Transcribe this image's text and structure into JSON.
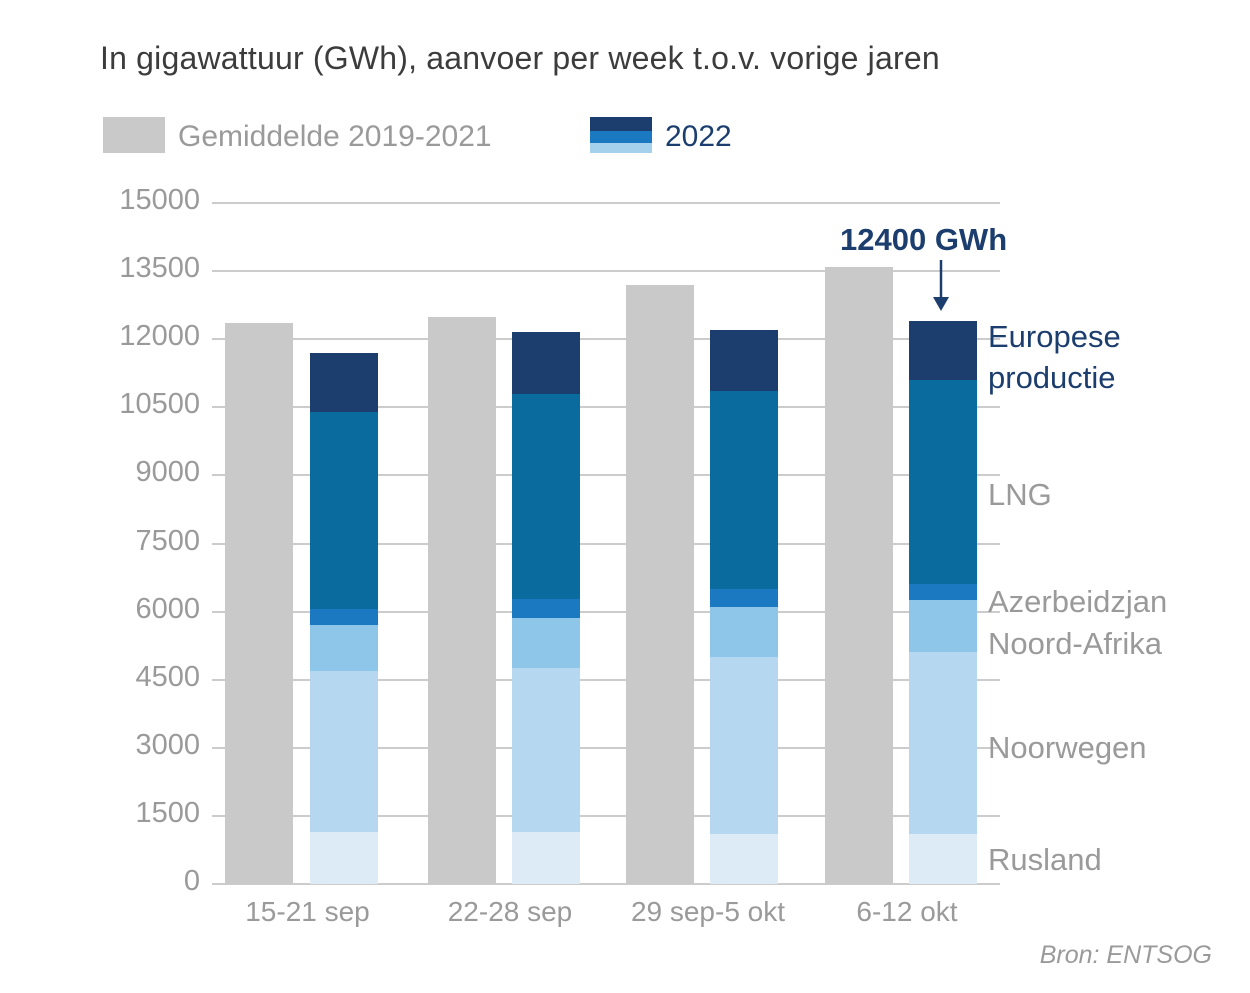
{
  "title": "In gigawattuur (GWh), aanvoer per week t.o.v. vorige jaren",
  "legend": {
    "average_label": "Gemiddelde 2019-2021",
    "year_label": "2022"
  },
  "annotation": {
    "label": "12400 GWh"
  },
  "source": "Bron: ENTSOG",
  "colors": {
    "average_bar": "#c9c9c9",
    "rusland": "#dcebf6",
    "noorwegen": "#b5d8f0",
    "noord_afrika": "#8ec6e9",
    "azerbeidzjan": "#1b79c2",
    "lng": "#0a6b9e",
    "europese_productie": "#1c3e6e",
    "navy_text": "#1c3e6e",
    "gray_text": "#9a9a9a",
    "gridline": "#cccccc"
  },
  "chart_data": {
    "type": "bar",
    "stacked": true,
    "grid": true,
    "legend_position": "top",
    "categories": [
      "15-21 sep",
      "22-28 sep",
      "29 sep-5 okt",
      "6-12 okt"
    ],
    "ylim": [
      0,
      15000
    ],
    "ytick_step": 1500,
    "yticks": [
      0,
      1500,
      3000,
      4500,
      6000,
      7500,
      9000,
      10500,
      12000,
      13500,
      15000
    ],
    "series_average": {
      "name": "Gemiddelde 2019-2021",
      "values": [
        12350,
        12500,
        13200,
        13600
      ]
    },
    "series_2022": {
      "name": "2022",
      "totals": [
        11700,
        12150,
        12200,
        12400
      ],
      "annotated_total": "12400 GWh",
      "segments": [
        {
          "label": "Rusland",
          "key": "rusland",
          "values": [
            1150,
            1150,
            1100,
            1100
          ]
        },
        {
          "label": "Noorwegen",
          "key": "noorwegen",
          "values": [
            3550,
            3600,
            3900,
            4000
          ]
        },
        {
          "label": "Noord-Afrika",
          "key": "noord_afrika",
          "values": [
            1000,
            1120,
            1100,
            1150
          ]
        },
        {
          "label": "Azerbeidzjan",
          "key": "azerbeidzjan",
          "values": [
            350,
            400,
            400,
            350
          ]
        },
        {
          "label": "LNG",
          "key": "lng",
          "values": [
            4350,
            4520,
            4350,
            4500
          ]
        },
        {
          "label": "Europese productie",
          "key": "europese_productie",
          "values": [
            1300,
            1360,
            1350,
            1300
          ]
        }
      ]
    },
    "right_labels": [
      {
        "text": "Europese productie",
        "emphasis": true
      },
      {
        "text": "LNG",
        "emphasis": false
      },
      {
        "text": "Azerbeidzjan",
        "emphasis": false
      },
      {
        "text": "Noord-Afrika",
        "emphasis": false
      },
      {
        "text": "Noorwegen",
        "emphasis": false
      },
      {
        "text": "Rusland",
        "emphasis": false
      }
    ]
  }
}
